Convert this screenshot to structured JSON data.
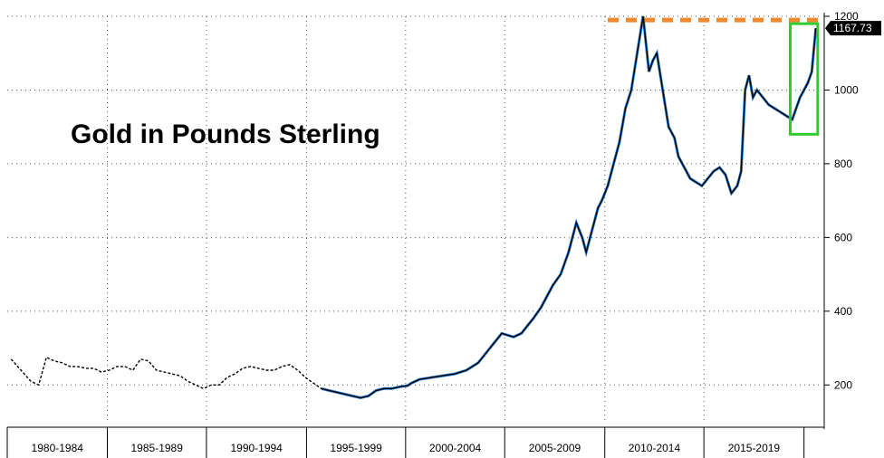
{
  "chart_data": {
    "type": "line",
    "title": "Gold in Pounds Sterling",
    "xlabel": "",
    "ylabel": "",
    "ylim": [
      100,
      1200
    ],
    "xlim": [
      1978.8,
      2020.2
    ],
    "y_ticks": [
      200,
      400,
      600,
      800,
      1000,
      1200
    ],
    "x_categories": [
      "1980-1984",
      "1985-1989",
      "1990-1994",
      "1995-1999",
      "2000-2004",
      "2005-2009",
      "2010-2014",
      "2015-2019"
    ],
    "x_category_bounds": [
      1978.8,
      1983.9,
      1988.95,
      1994.05,
      1999.1,
      2004.15,
      2009.25,
      2014.3,
      2019.4
    ],
    "grid": true,
    "last_value_label": "1167.73",
    "resistance_level": 1190,
    "highlight_box": {
      "x_range": [
        2018.7,
        2020.1
      ],
      "y_range": [
        880,
        1180
      ]
    },
    "colors": {
      "series_line": "#000000",
      "series_overlay": "#2a7fd4",
      "resistance": "#f08a30",
      "highlight": "#2ecc2e",
      "last_label_bg": "#000000"
    },
    "series": [
      {
        "x": [
          1979.0,
          1979.5,
          1980.0,
          1980.4,
          1980.8,
          1981.2,
          1981.6,
          1982.0,
          1982.4,
          1982.8,
          1983.2,
          1983.6,
          1984.0,
          1984.4,
          1984.8,
          1985.2,
          1985.6,
          1986.0,
          1986.4,
          1986.8,
          1987.2,
          1987.6,
          1988.0,
          1988.4,
          1988.8,
          1989.2,
          1989.6,
          1990.0,
          1990.4,
          1990.8,
          1991.2,
          1991.6,
          1992.0,
          1992.4,
          1992.8,
          1993.2,
          1993.6,
          1994.0,
          1994.4,
          1994.8,
          1995.2,
          1995.6,
          1996.0,
          1996.4,
          1996.8,
          1997.2,
          1997.6,
          1998.0,
          1998.4,
          1998.8,
          1999.2,
          1999.4,
          1999.8,
          2000.4,
          2001.0,
          2001.6,
          2002.2,
          2002.8,
          2003.4,
          2004.0,
          2004.6,
          2005.0,
          2005.3,
          2005.6,
          2006.0,
          2006.3,
          2006.6,
          2007.0,
          2007.4,
          2007.8,
          2008.1,
          2008.3,
          2008.6,
          2008.9,
          2009.1,
          2009.4,
          2009.7,
          2010.0,
          2010.3,
          2010.6,
          2010.9,
          2011.2,
          2011.5,
          2011.7,
          2011.9,
          2012.2,
          2012.5,
          2012.8,
          2013.0,
          2013.2,
          2013.4,
          2013.6,
          2013.9,
          2014.2,
          2014.5,
          2014.8,
          2015.1,
          2015.4,
          2015.7,
          2016.0,
          2016.2,
          2016.4,
          2016.6,
          2016.8,
          2017.0,
          2017.3,
          2017.6,
          2017.9,
          2018.2,
          2018.5,
          2018.8,
          2019.0,
          2019.2,
          2019.4,
          2019.6,
          2019.8,
          2020.0
        ],
        "y": [
          270,
          240,
          210,
          200,
          275,
          265,
          260,
          250,
          250,
          245,
          245,
          235,
          240,
          250,
          250,
          240,
          270,
          265,
          240,
          235,
          230,
          225,
          210,
          200,
          190,
          200,
          200,
          220,
          230,
          245,
          250,
          245,
          240,
          240,
          250,
          255,
          240,
          220,
          205,
          190,
          185,
          180,
          175,
          170,
          165,
          170,
          185,
          190,
          190,
          195,
          198,
          205,
          215,
          220,
          225,
          230,
          240,
          260,
          300,
          340,
          330,
          340,
          360,
          380,
          410,
          440,
          470,
          500,
          560,
          640,
          600,
          560,
          620,
          680,
          700,
          740,
          800,
          860,
          950,
          1000,
          1100,
          1200,
          1050,
          1080,
          1100,
          1000,
          900,
          870,
          820,
          800,
          780,
          760,
          750,
          740,
          760,
          780,
          790,
          770,
          720,
          740,
          780,
          1000,
          1040,
          980,
          1000,
          980,
          960,
          950,
          940,
          930,
          920,
          950,
          980,
          1000,
          1020,
          1050,
          1167.73
        ]
      }
    ]
  }
}
